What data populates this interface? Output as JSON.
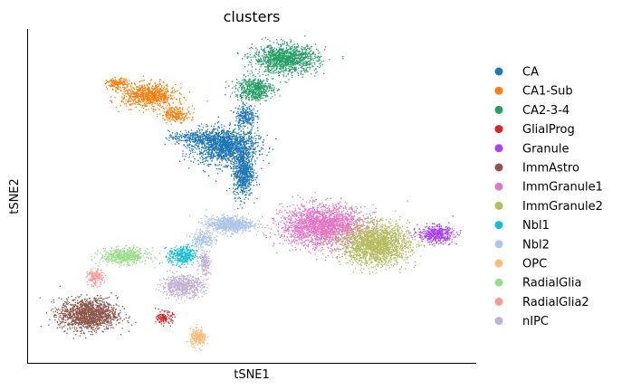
{
  "chart_data": {
    "type": "scatter",
    "title": "clusters",
    "xlabel": "tSNE1",
    "ylabel": "tSNE2",
    "xticks": [],
    "yticks": [],
    "xlim": [
      0,
      100
    ],
    "ylim": [
      0,
      100
    ],
    "grid": false,
    "legend_position": "right",
    "series": [
      {
        "name": "CA",
        "color": "#1f77b4",
        "clusters": [
          {
            "cx": 44,
            "cy": 65,
            "sx": 6.5,
            "sy": 4.8,
            "n": 1500
          },
          {
            "cx": 48,
            "cy": 57,
            "sx": 2.0,
            "sy": 6.5,
            "n": 700
          },
          {
            "cx": 37,
            "cy": 67.5,
            "sx": 5,
            "sy": 1.8,
            "n": 260
          },
          {
            "cx": 48.5,
            "cy": 74,
            "sx": 2,
            "sy": 3,
            "n": 220
          }
        ]
      },
      {
        "name": "CA1-Sub",
        "color": "#ff7f0e",
        "clusters": [
          {
            "cx": 27,
            "cy": 80,
            "sx": 5.5,
            "sy": 3.2,
            "n": 800
          },
          {
            "cx": 20,
            "cy": 83.5,
            "sx": 2.2,
            "sy": 1.5,
            "n": 150
          },
          {
            "cx": 33,
            "cy": 74.5,
            "sx": 3,
            "sy": 2,
            "n": 220
          }
        ]
      },
      {
        "name": "CA2-3-4",
        "color": "#279e68",
        "clusters": [
          {
            "cx": 57.5,
            "cy": 91,
            "sx": 6.5,
            "sy": 3.8,
            "n": 1200
          },
          {
            "cx": 50.5,
            "cy": 82,
            "sx": 3.8,
            "sy": 3.2,
            "n": 550
          }
        ]
      },
      {
        "name": "GlialProg",
        "color": "#d62728",
        "clusters": [
          {
            "cx": 30.5,
            "cy": 13.5,
            "sx": 1.6,
            "sy": 1.6,
            "n": 130
          }
        ]
      },
      {
        "name": "Granule",
        "color": "#aa40fc",
        "clusters": [
          {
            "cx": 91,
            "cy": 38.5,
            "sx": 3.6,
            "sy": 2.3,
            "n": 450
          }
        ]
      },
      {
        "name": "ImmAstro",
        "color": "#8c564b",
        "clusters": [
          {
            "cx": 13.5,
            "cy": 14.5,
            "sx": 5.8,
            "sy": 4.3,
            "n": 1400
          }
        ]
      },
      {
        "name": "ImmGranule1",
        "color": "#e377c2",
        "clusters": [
          {
            "cx": 66,
            "cy": 41,
            "sx": 8.5,
            "sy": 5.5,
            "n": 2200
          }
        ]
      },
      {
        "name": "ImmGranule2",
        "color": "#b5bd61",
        "clusters": [
          {
            "cx": 77.5,
            "cy": 35.5,
            "sx": 6.8,
            "sy": 5.5,
            "n": 2000
          }
        ]
      },
      {
        "name": "Nbl1",
        "color": "#17becf",
        "clusters": [
          {
            "cx": 34.5,
            "cy": 32,
            "sx": 2.8,
            "sy": 2.6,
            "n": 350
          }
        ]
      },
      {
        "name": "Nbl2",
        "color": "#aec7e8",
        "clusters": [
          {
            "cx": 45,
            "cy": 41.5,
            "sx": 4.8,
            "sy": 2.2,
            "n": 800
          },
          {
            "cx": 39,
            "cy": 37,
            "sx": 2.2,
            "sy": 2.2,
            "n": 200
          }
        ]
      },
      {
        "name": "OPC",
        "color": "#ffbb78",
        "clusters": [
          {
            "cx": 38,
            "cy": 7.5,
            "sx": 1.6,
            "sy": 2.2,
            "n": 240
          }
        ]
      },
      {
        "name": "RadialGlia",
        "color": "#98df8a",
        "clusters": [
          {
            "cx": 21.5,
            "cy": 32,
            "sx": 4.8,
            "sy": 2.1,
            "n": 550
          }
        ]
      },
      {
        "name": "RadialGlia2",
        "color": "#ff9896",
        "clusters": [
          {
            "cx": 15,
            "cy": 25.5,
            "sx": 1.6,
            "sy": 2.2,
            "n": 160
          }
        ]
      },
      {
        "name": "nIPC",
        "color": "#c5b0d5",
        "clusters": [
          {
            "cx": 34.5,
            "cy": 23,
            "sx": 4.2,
            "sy": 2.8,
            "n": 650
          },
          {
            "cx": 39.5,
            "cy": 30,
            "sx": 1.2,
            "sy": 3.5,
            "n": 150
          }
        ]
      }
    ]
  }
}
